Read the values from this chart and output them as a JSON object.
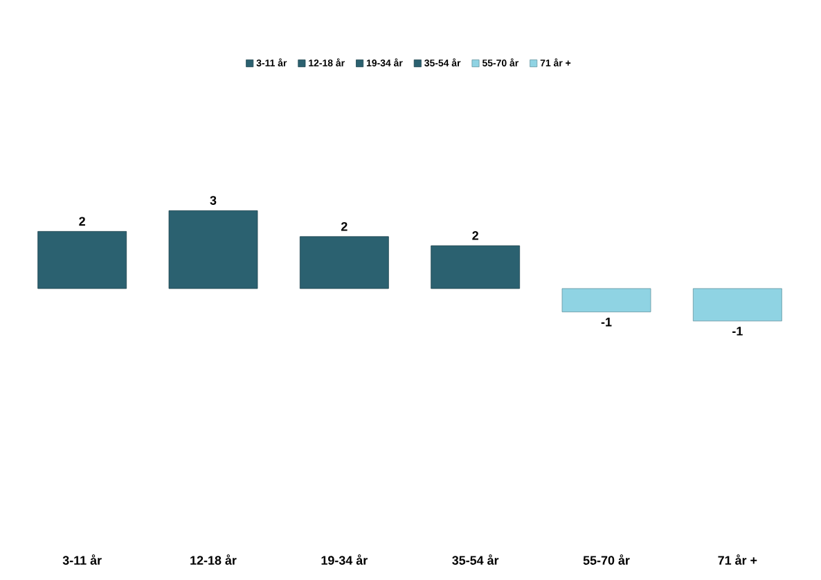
{
  "chart_data": {
    "type": "bar",
    "categories": [
      "3-11 år",
      "12-18 år",
      "19-34 år",
      "35-54 år",
      "55-70 år",
      "71 år +"
    ],
    "series": [
      {
        "name": "3-11 år",
        "color": "#2b6170",
        "values": [
          2.2,
          null,
          null,
          null,
          null,
          null
        ],
        "value_labels": [
          "2",
          null,
          null,
          null,
          null,
          null
        ]
      },
      {
        "name": "12-18 år",
        "color": "#2b6170",
        "values": [
          null,
          3.0,
          null,
          null,
          null,
          null
        ],
        "value_labels": [
          null,
          "3",
          null,
          null,
          null,
          null
        ]
      },
      {
        "name": "19-34 år",
        "color": "#2b6170",
        "values": [
          null,
          null,
          2.0,
          null,
          null,
          null
        ],
        "value_labels": [
          null,
          null,
          "2",
          null,
          null,
          null
        ]
      },
      {
        "name": "35-54 år",
        "color": "#2b6170",
        "values": [
          null,
          null,
          null,
          1.65,
          null,
          null
        ],
        "value_labels": [
          null,
          null,
          null,
          "2",
          null,
          null
        ]
      },
      {
        "name": "55-70 år",
        "color": "#8fd3e3",
        "values": [
          null,
          null,
          null,
          null,
          -0.9,
          null
        ],
        "value_labels": [
          null,
          null,
          null,
          null,
          "-1",
          null
        ]
      },
      {
        "name": "71 år +",
        "color": "#8fd3e3",
        "values": [
          null,
          null,
          null,
          null,
          null,
          -1.25
        ],
        "value_labels": [
          null,
          null,
          null,
          null,
          null,
          "-1"
        ]
      }
    ],
    "legend": "top"
  }
}
